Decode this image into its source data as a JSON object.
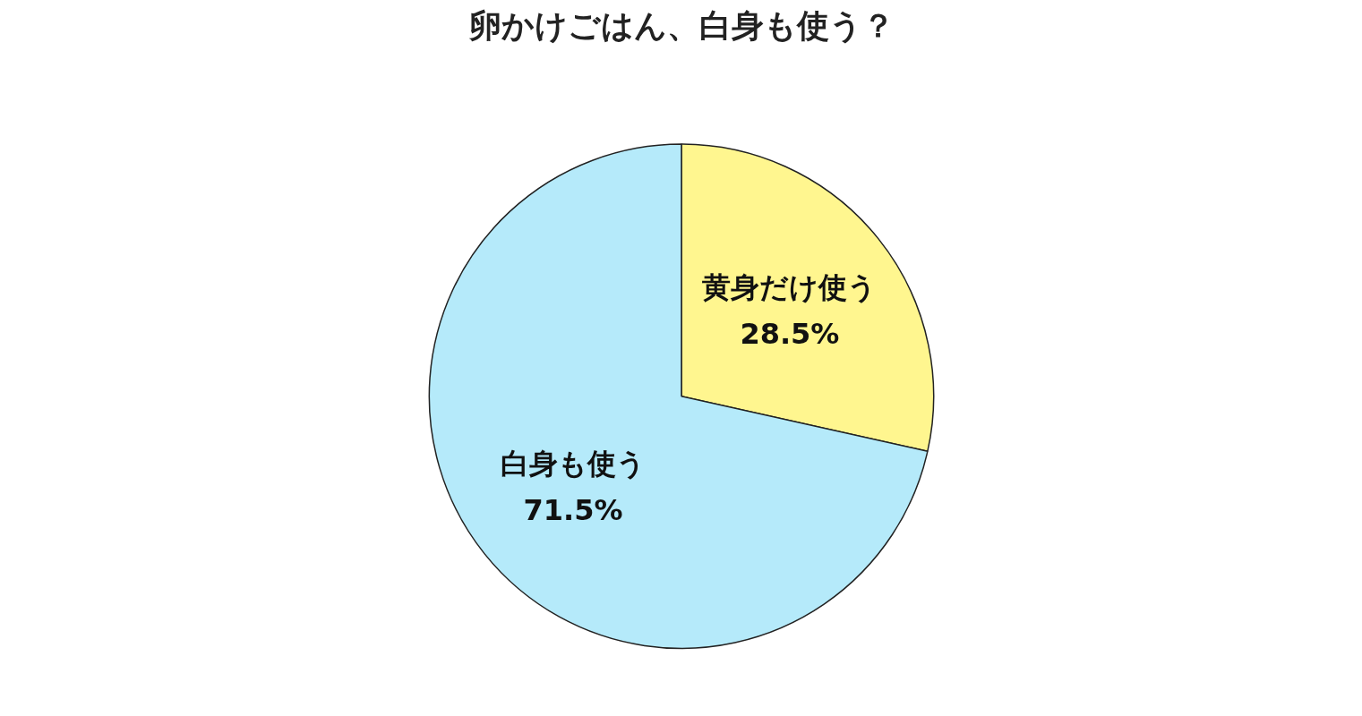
{
  "chart_data": {
    "type": "pie",
    "title": "卵かけごはん、白身も使う？",
    "categories": [
      "黄身だけ使う",
      "白身も使う"
    ],
    "values": [
      28.5,
      71.5
    ],
    "colors": [
      "#fff68f",
      "#b5eafa"
    ],
    "value_labels": [
      "28.5%",
      "71.5%"
    ],
    "legend": false
  }
}
